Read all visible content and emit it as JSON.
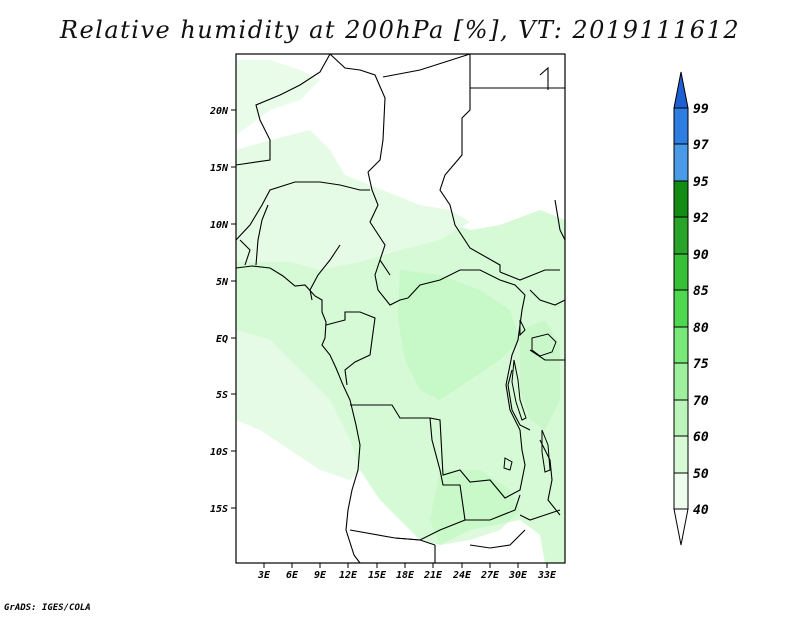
{
  "title": "Relative humidity at 200hPa [%], VT: 2019111612",
  "credit": "GrADS: IGES/COLA",
  "map": {
    "lat_labels": [
      "20N",
      "15N",
      "10N",
      "5N",
      "EQ",
      "5S",
      "10S",
      "15S"
    ],
    "lon_labels": [
      "3E",
      "6E",
      "9E",
      "12E",
      "15E",
      "18E",
      "21E",
      "24E",
      "27E",
      "30E",
      "33E"
    ]
  },
  "colorbar": {
    "levels": [
      "99",
      "97",
      "95",
      "92",
      "90",
      "85",
      "80",
      "75",
      "70",
      "60",
      "50",
      "40"
    ],
    "colors": [
      "#1e5fd2",
      "#2e7de0",
      "#4b9ae8",
      "#128c12",
      "#28a528",
      "#39c039",
      "#4fd84f",
      "#78e878",
      "#9ef09e",
      "#bcf5bc",
      "#d6fad6",
      "#eefcee",
      "#ffffff"
    ]
  },
  "colors": {
    "land_outline": "#000000",
    "humidity_light": "#d6fad6",
    "humidity_mid": "#bcf5bc"
  }
}
